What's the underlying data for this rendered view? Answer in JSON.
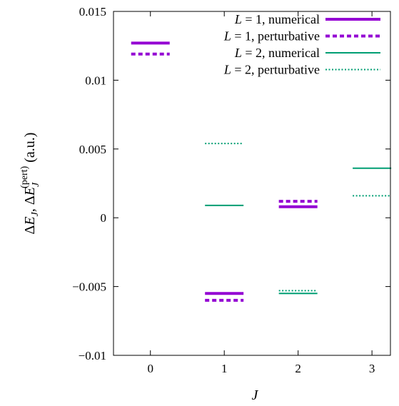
{
  "chart_data": {
    "type": "scatter",
    "title": "",
    "xlabel": "J",
    "ylabel": "ΔE_J, ΔE_J^(pert) (a.u.)",
    "ylabel_parts": {
      "p1": "Δ",
      "p2": "E",
      "p3": "J",
      "p4": ", Δ",
      "p5": "E",
      "p6": "J",
      "p7": "(pert)",
      "p8": " (a.u.)"
    },
    "xlim": [
      -0.5,
      3.25
    ],
    "ylim": [
      -0.01,
      0.015
    ],
    "xticks": [
      0,
      1,
      2,
      3
    ],
    "xtick_labels": [
      "0",
      "1",
      "2",
      "3"
    ],
    "yticks": [
      -0.01,
      -0.005,
      0,
      0.005,
      0.01,
      0.015
    ],
    "ytick_labels": [
      "−0.01",
      "−0.005",
      "0",
      "0.005",
      "0.01",
      "0.015"
    ],
    "grid": false,
    "legend_placement": "top-right",
    "series": [
      {
        "name": "L = 1, numerical",
        "legend": {
          "var": "L",
          "rest": " = 1, numerical"
        },
        "color": "#9400d3",
        "style": "solid",
        "weight": "thick",
        "x": [
          1,
          2
        ],
        "y": [
          -0.0055,
          0.0008
        ]
      },
      {
        "name": "L = 1, perturbative",
        "legend": {
          "var": "L",
          "rest": " = 1, perturbative"
        },
        "color": "#9400d3",
        "style": "dotted",
        "weight": "thick",
        "x": [
          1,
          2
        ],
        "y": [
          -0.006,
          0.0012
        ]
      },
      {
        "name": "L = 2, numerical",
        "legend": {
          "var": "L",
          "rest": " = 2, numerical"
        },
        "color": "#009e73",
        "style": "solid",
        "weight": "thin",
        "x": [
          1,
          2,
          3
        ],
        "y": [
          0.0009,
          -0.0055,
          0.0036
        ]
      },
      {
        "name": "L = 2, perturbative",
        "legend": {
          "var": "L",
          "rest": " = 2, perturbative"
        },
        "color": "#009e73",
        "style": "dotted",
        "weight": "thin",
        "x": [
          1,
          2,
          3
        ],
        "y": [
          0.0054,
          -0.0053,
          0.0016
        ]
      }
    ],
    "marker_key": [
      {
        "x": 0,
        "y": 0.0127,
        "color": "#9400d3",
        "style": "solid",
        "weight": "thick"
      },
      {
        "x": 0,
        "y": 0.0119,
        "color": "#9400d3",
        "style": "dotted",
        "weight": "thick"
      }
    ]
  }
}
